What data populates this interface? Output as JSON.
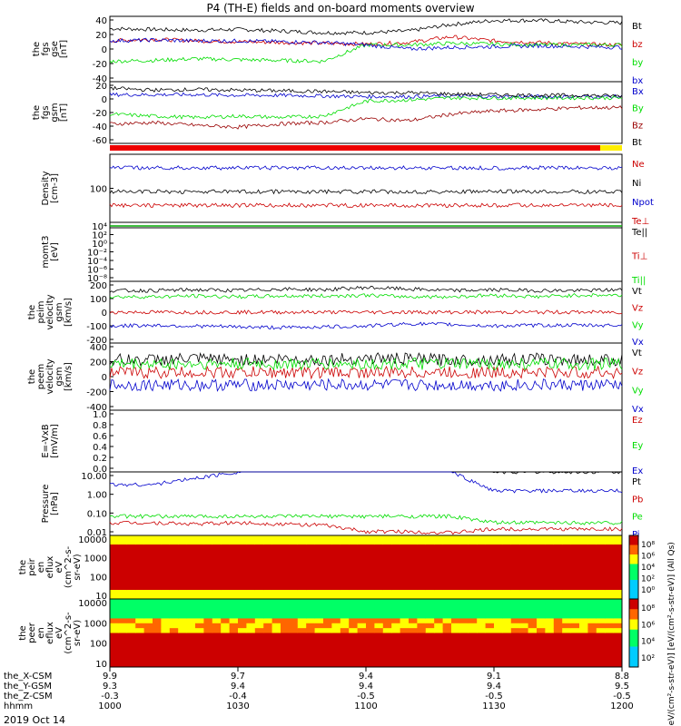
{
  "title": "P4 (TH-E) fields and on-board moments overview",
  "footer_date": "2019 Oct 14",
  "chart_data": [
    {
      "id": "fgs_gse",
      "type": "line",
      "ylabel": [
        "the",
        "fgs",
        "gse",
        "[nT]"
      ],
      "yticks": [
        40,
        20,
        0,
        -20,
        -40
      ],
      "ylim": [
        -40,
        40
      ],
      "series": [
        {
          "name": "Bt",
          "color": "#000000",
          "values": [
            25,
            24,
            23,
            24,
            22,
            20,
            20,
            22,
            30,
            35,
            35,
            33,
            32
          ]
        },
        {
          "name": "bz",
          "color": "#cc0000",
          "values": [
            10,
            12,
            10,
            9,
            8,
            7,
            6,
            8,
            15,
            10,
            8,
            6,
            5
          ]
        },
        {
          "name": "by",
          "color": "#00dd00",
          "values": [
            -15,
            -14,
            -12,
            -13,
            -14,
            -15,
            5,
            5,
            7,
            6,
            5,
            5,
            5
          ]
        },
        {
          "name": "bx",
          "color": "#0000cc",
          "values": [
            10,
            11,
            10,
            10,
            9,
            8,
            5,
            0,
            2,
            3,
            4,
            3,
            2
          ]
        }
      ]
    },
    {
      "id": "fgs_gsm",
      "type": "line",
      "ylabel": [
        "the",
        "fgs",
        "gsm",
        "[nT]"
      ],
      "yticks": [
        20,
        0,
        -20,
        -40,
        -60
      ],
      "ylim": [
        -70,
        25
      ],
      "series": [
        {
          "name": "Bx",
          "color": "#0000cc",
          "values": [
            5,
            5,
            5,
            4,
            4,
            3,
            2,
            2,
            3,
            2,
            2,
            2,
            2
          ]
        },
        {
          "name": "By",
          "color": "#00dd00",
          "values": [
            -25,
            -28,
            -30,
            -28,
            -30,
            -28,
            -5,
            -3,
            0,
            0,
            0,
            0,
            0
          ]
        },
        {
          "name": "Bz",
          "color": "#990000",
          "values": [
            -40,
            -38,
            -42,
            -45,
            -40,
            -38,
            -32,
            -35,
            -25,
            -20,
            -18,
            -15,
            -15
          ]
        },
        {
          "name": "Bt",
          "color": "#000000",
          "values": [
            15,
            12,
            13,
            12,
            11,
            10,
            8,
            8,
            6,
            5,
            4,
            4,
            3
          ]
        }
      ]
    },
    {
      "id": "density",
      "type": "line",
      "scale": "log",
      "ylabel": [
        "Density",
        "[cm-3]"
      ],
      "yticks": [
        "100"
      ],
      "series": [
        {
          "name": "Ne",
          "color": "#cc0000"
        },
        {
          "name": "Ni",
          "color": "#000000"
        },
        {
          "name": "Npot",
          "color": "#0000cc"
        },
        {
          "name": "Te⊥",
          "color": "#cc0000"
        }
      ]
    },
    {
      "id": "moms_t3",
      "type": "line",
      "scale": "log",
      "ylabel": [
        "momt3",
        "[eV]"
      ],
      "yticks": [
        "10⁴",
        "10²",
        "10⁰",
        "10⁻²",
        "10⁻⁴",
        "10⁻⁶",
        "10⁻⁸"
      ],
      "series": [
        {
          "name": "Te||",
          "color": "#000000"
        },
        {
          "name": "Ti⊥",
          "color": "#cc0000"
        },
        {
          "name": "Ti||",
          "color": "#00dd00"
        }
      ]
    },
    {
      "id": "peim_velocity",
      "type": "line",
      "ylabel": [
        "the",
        "peim",
        "velocity",
        "gsm",
        "[km/s]"
      ],
      "yticks": [
        200,
        100,
        0,
        -100,
        -200
      ],
      "ylim": [
        -200,
        200
      ],
      "series": [
        {
          "name": "Vt",
          "color": "#000000",
          "values": [
            140,
            140,
            145,
            140,
            150,
            145,
            160,
            150,
            140,
            145,
            140,
            140,
            145
          ]
        },
        {
          "name": "Vz",
          "color": "#cc0000",
          "values": [
            0,
            0,
            0,
            0,
            0,
            0,
            0,
            0,
            0,
            0,
            0,
            0,
            0
          ]
        },
        {
          "name": "Vy",
          "color": "#00dd00",
          "values": [
            100,
            100,
            105,
            100,
            105,
            105,
            110,
            100,
            100,
            110,
            100,
            110,
            110
          ]
        },
        {
          "name": "Vx",
          "color": "#0000cc",
          "values": [
            -90,
            -85,
            -90,
            -95,
            -100,
            -95,
            -90,
            -75,
            -80,
            -90,
            -85,
            -85,
            -85
          ]
        }
      ]
    },
    {
      "id": "peem_velocity",
      "type": "line",
      "ylabel": [
        "the",
        "peem",
        "velocity",
        "gsm",
        "[km/s]"
      ],
      "yticks": [
        400,
        200,
        0,
        -200,
        -400
      ],
      "ylim": [
        -400,
        400
      ],
      "series": [
        {
          "name": "Vt",
          "color": "#000000",
          "values": [
            200,
            200,
            210,
            200,
            210,
            200,
            220,
            210,
            200,
            200,
            210,
            200,
            200
          ]
        },
        {
          "name": "Vz",
          "color": "#cc0000",
          "values": [
            50,
            50,
            50,
            50,
            50,
            50,
            50,
            50,
            50,
            50,
            50,
            50,
            50
          ]
        },
        {
          "name": "Vy",
          "color": "#00dd00",
          "values": [
            150,
            150,
            150,
            150,
            150,
            150,
            150,
            150,
            150,
            150,
            150,
            150,
            150
          ]
        },
        {
          "name": "Vx",
          "color": "#0000cc",
          "values": [
            -100,
            -100,
            -100,
            -100,
            -100,
            -100,
            -100,
            -100,
            -100,
            -100,
            -100,
            -100,
            -100
          ]
        }
      ]
    },
    {
      "id": "efield",
      "type": "line",
      "ylabel": [
        "E=-VxB",
        "[mV/m]"
      ],
      "yticks": [
        "1.0",
        "0.8",
        "0.6",
        "0.4",
        "0.2",
        "0.0"
      ],
      "ylim": [
        0,
        1
      ],
      "series": [
        {
          "name": "Ez",
          "color": "#cc0000"
        },
        {
          "name": "Ey",
          "color": "#00dd00"
        },
        {
          "name": "Ex",
          "color": "#0000cc"
        }
      ]
    },
    {
      "id": "pressure",
      "type": "line",
      "scale": "log",
      "ylabel": [
        "Pressure",
        "[nPa]"
      ],
      "yticks": [
        "10.00",
        "1.00",
        "0.10",
        "0.01"
      ],
      "series": [
        {
          "name": "Pt",
          "color": "#000000",
          "values": [
            1.1,
            1.1,
            1.2,
            1.3,
            1.4,
            1.6,
            1.9,
            1.8,
            1.1,
            1.0,
            1.0,
            1.0,
            1.0
          ]
        },
        {
          "name": "Pb",
          "color": "#cc0000",
          "values": [
            0.2,
            0.2,
            0.18,
            0.2,
            0.18,
            0.16,
            0.06,
            0.06,
            0.04,
            0.1,
            0.1,
            0.1,
            0.1
          ]
        },
        {
          "name": "Pe",
          "color": "#00dd00",
          "values": [
            0.3,
            0.3,
            0.3,
            0.3,
            0.3,
            0.3,
            0.3,
            0.3,
            0.3,
            0.2,
            0.2,
            0.2,
            0.2
          ]
        },
        {
          "name": "Pi",
          "color": "#0000cc",
          "values": [
            0.8,
            0.8,
            0.9,
            1.0,
            1.2,
            1.5,
            1.8,
            1.7,
            1.0,
            0.7,
            0.7,
            0.7,
            0.7
          ]
        }
      ]
    },
    {
      "id": "peir_eflux",
      "type": "heatmap",
      "ylabel": [
        "the",
        "peir",
        "en",
        "eflux",
        "eV",
        "(cm^2-s-",
        "sr-eV)"
      ],
      "yticks": [
        "10000",
        "1000",
        "100",
        "10"
      ],
      "colorbar_ticks": [
        "10⁸",
        "10⁶",
        "10⁴",
        "10²",
        "10⁰"
      ]
    },
    {
      "id": "peer_eflux",
      "type": "heatmap",
      "ylabel": [
        "the",
        "peer",
        "en",
        "eflux",
        "eV",
        "(cm^2-s-",
        "sr-eV)"
      ],
      "yticks": [
        "10000",
        "1000",
        "100",
        "10"
      ],
      "colorbar_ticks": [
        "10⁸",
        "10⁶",
        "10⁴",
        "10²"
      ]
    }
  ],
  "colorbar_label": "[eV/(cm²-s-str-eV)] [eV/(cm²-s-str-eV)] (All Qs)",
  "xaxis": {
    "row_labels": [
      "the_X-CSM",
      "the_Y-GSM",
      "the_Z-CSM",
      "hhmm"
    ],
    "columns": [
      [
        "9.9",
        "9.3",
        "-0.3",
        "1000"
      ],
      [
        "9.7",
        "9.4",
        "-0.4",
        "1030"
      ],
      [
        "9.4",
        "9.4",
        "-0.5",
        "1100"
      ],
      [
        "9.1",
        "9.4",
        "-0.5",
        "1130"
      ],
      [
        "8.8",
        "9.5",
        "-0.5",
        "1200"
      ]
    ]
  }
}
